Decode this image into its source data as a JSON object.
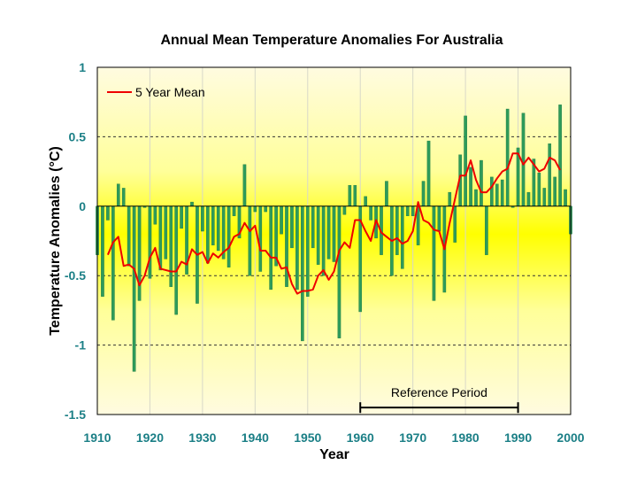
{
  "colors": {
    "bar": "#2e9b5a",
    "bar_stroke": "#1f7a42",
    "mean_line": "#ee0000",
    "tick_color": "#1b7f86",
    "band_yellow": "#ffff00",
    "band_light": "#fffbe0"
  },
  "chart_data": {
    "type": "bar",
    "title": "Annual Mean Temperature Anomalies For Australia",
    "xlabel": "Year",
    "ylabel": "Temperature Anomalies (°C)",
    "xlim": [
      1910,
      2000
    ],
    "ylim": [
      -1.5,
      1
    ],
    "xticks": [
      "1910",
      "1920",
      "1930",
      "1940",
      "1950",
      "1960",
      "1970",
      "1980",
      "1990",
      "2000"
    ],
    "yticks": [
      "1",
      "0.5",
      "0",
      "-0.5",
      "-1",
      "-1.5"
    ],
    "grid": "horizontal dashed at 0.5 and -0.5, vertical light lines at decades",
    "legend_position": "top-left",
    "x": [
      1910,
      1911,
      1912,
      1913,
      1914,
      1915,
      1916,
      1917,
      1918,
      1919,
      1920,
      1921,
      1922,
      1923,
      1924,
      1925,
      1926,
      1927,
      1928,
      1929,
      1930,
      1931,
      1932,
      1933,
      1934,
      1935,
      1936,
      1937,
      1938,
      1939,
      1940,
      1941,
      1942,
      1943,
      1944,
      1945,
      1946,
      1947,
      1948,
      1949,
      1950,
      1951,
      1952,
      1953,
      1954,
      1955,
      1956,
      1957,
      1958,
      1959,
      1960,
      1961,
      1962,
      1963,
      1964,
      1965,
      1966,
      1967,
      1968,
      1969,
      1970,
      1971,
      1972,
      1973,
      1974,
      1975,
      1976,
      1977,
      1978,
      1979,
      1980,
      1981,
      1982,
      1983,
      1984,
      1985,
      1986,
      1987,
      1988,
      1989,
      1990,
      1991,
      1992,
      1993,
      1994,
      1995,
      1996,
      1997,
      1998,
      1999,
      2000
    ],
    "series": [
      {
        "values": [
          -0.35,
          -0.65,
          -0.1,
          -0.82,
          0.16,
          0.13,
          -0.43,
          -1.19,
          -0.68,
          -0.01,
          -0.52,
          -0.13,
          -0.46,
          -0.38,
          -0.58,
          -0.78,
          -0.16,
          -0.49,
          0.03,
          -0.7,
          -0.18,
          -0.41,
          -0.28,
          -0.32,
          -0.38,
          -0.44,
          -0.07,
          -0.23,
          0.3,
          -0.5,
          -0.04,
          -0.47,
          -0.04,
          -0.6,
          -0.43,
          -0.2,
          -0.58,
          -0.3,
          -0.6,
          -0.97,
          -0.65,
          -0.3,
          -0.42,
          -0.5,
          -0.38,
          -0.4,
          -0.95,
          -0.06,
          0.15,
          0.15,
          -0.76,
          0.07,
          -0.1,
          -0.23,
          -0.35,
          0.18,
          -0.5,
          -0.35,
          -0.45,
          -0.07,
          -0.07,
          -0.28,
          0.18,
          0.47,
          -0.68,
          -0.18,
          -0.62,
          0.1,
          -0.26,
          0.37,
          0.65,
          0.28,
          0.12,
          0.33,
          -0.35,
          0.21,
          0.16,
          0.19,
          0.7,
          -0.01,
          0.42,
          0.67,
          0.1,
          0.34,
          0.24,
          0.13,
          0.45,
          0.21,
          0.73,
          0.12,
          -0.2
        ]
      },
      {
        "name": "5 Year Mean",
        "x": [
          1912,
          1913,
          1914,
          1915,
          1916,
          1917,
          1918,
          1919,
          1920,
          1921,
          1922,
          1923,
          1924,
          1925,
          1926,
          1927,
          1928,
          1929,
          1930,
          1931,
          1932,
          1933,
          1934,
          1935,
          1936,
          1937,
          1938,
          1939,
          1940,
          1941,
          1942,
          1943,
          1944,
          1945,
          1946,
          1947,
          1948,
          1949,
          1950,
          1951,
          1952,
          1953,
          1954,
          1955,
          1956,
          1957,
          1958,
          1959,
          1960,
          1961,
          1962,
          1963,
          1964,
          1965,
          1966,
          1967,
          1968,
          1969,
          1970,
          1971,
          1972,
          1973,
          1974,
          1975,
          1976,
          1977,
          1978,
          1979,
          1980,
          1981,
          1982,
          1983,
          1984,
          1985,
          1986,
          1987,
          1988,
          1989,
          1990,
          1991,
          1992,
          1993,
          1994,
          1995,
          1996,
          1997,
          1998
        ],
        "values": [
          -0.35,
          -0.26,
          -0.22,
          -0.43,
          -0.42,
          -0.45,
          -0.57,
          -0.5,
          -0.37,
          -0.3,
          -0.45,
          -0.46,
          -0.47,
          -0.47,
          -0.4,
          -0.42,
          -0.31,
          -0.35,
          -0.33,
          -0.41,
          -0.34,
          -0.37,
          -0.33,
          -0.3,
          -0.22,
          -0.2,
          -0.12,
          -0.18,
          -0.14,
          -0.32,
          -0.32,
          -0.37,
          -0.37,
          -0.45,
          -0.44,
          -0.56,
          -0.63,
          -0.61,
          -0.61,
          -0.6,
          -0.5,
          -0.46,
          -0.53,
          -0.47,
          -0.32,
          -0.26,
          -0.3,
          -0.1,
          -0.1,
          -0.18,
          -0.25,
          -0.1,
          -0.19,
          -0.22,
          -0.25,
          -0.23,
          -0.27,
          -0.25,
          -0.18,
          0.03,
          -0.1,
          -0.12,
          -0.17,
          -0.18,
          -0.31,
          -0.12,
          0.05,
          0.22,
          0.22,
          0.33,
          0.19,
          0.1,
          0.1,
          0.14,
          0.2,
          0.25,
          0.27,
          0.38,
          0.38,
          0.3,
          0.35,
          0.3,
          0.25,
          0.27,
          0.35,
          0.33,
          0.26
        ]
      }
    ],
    "annotations": [
      {
        "text": "Reference Period",
        "x_range": [
          1960,
          1990
        ],
        "y": -1.45
      }
    ]
  }
}
